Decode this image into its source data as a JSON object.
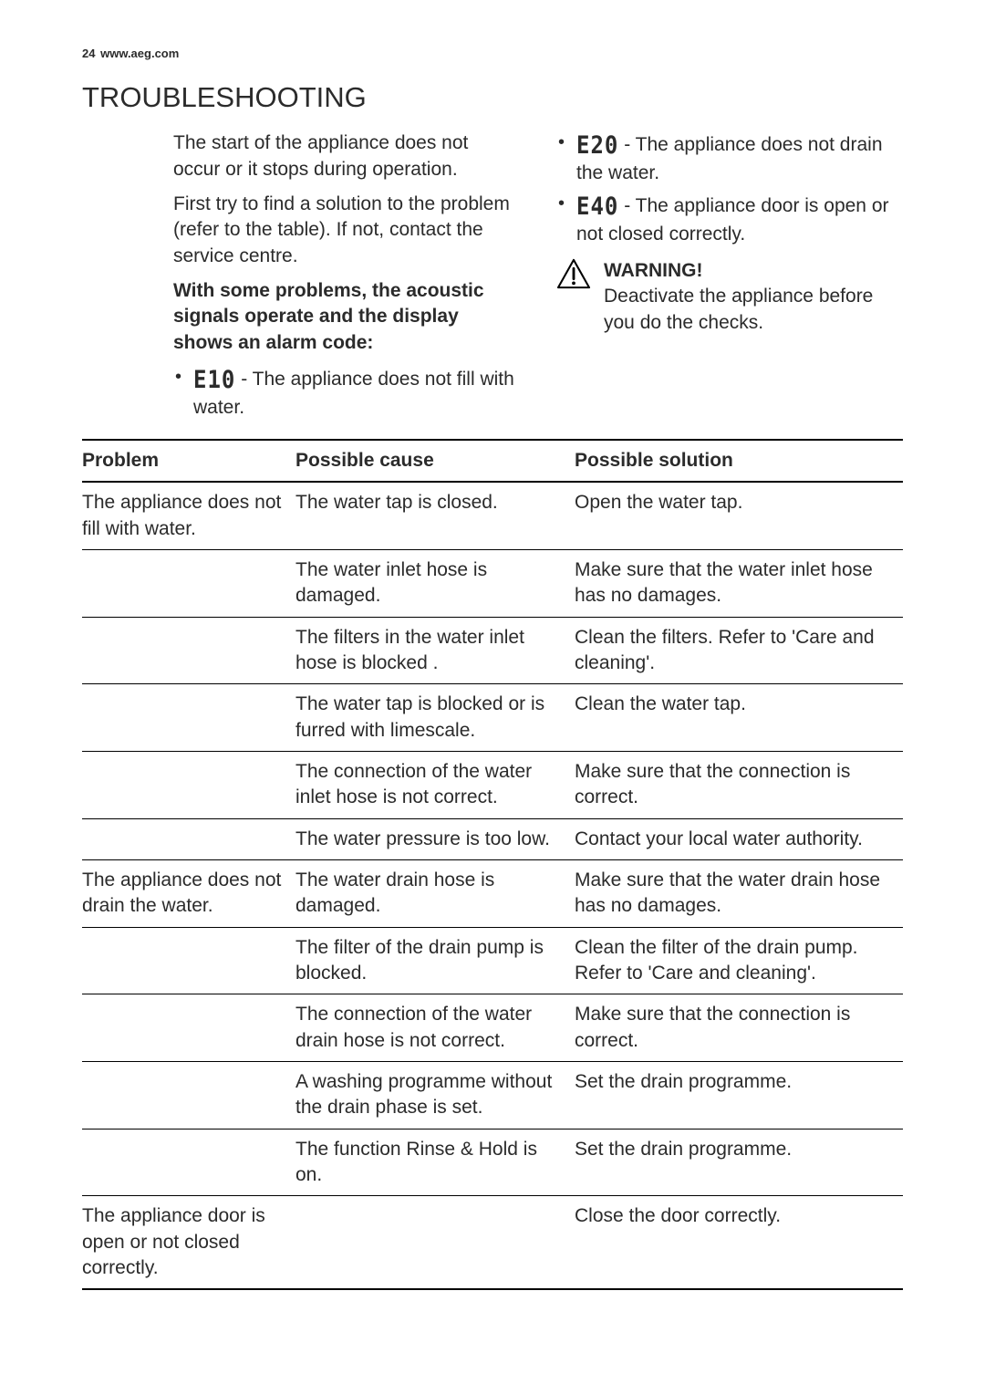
{
  "page": {
    "number": "24",
    "site": "www.aeg.com"
  },
  "title": "TROUBLESHOOTING",
  "left": {
    "para1": "The start of the appliance does not occur or it stops during operation.",
    "para2": "First try to find a solution to the problem (refer to the table). If not, contact the service centre.",
    "boldPara": "With some problems, the acoustic signals operate and the display shows an alarm code:",
    "codes": [
      {
        "code": "E10",
        "text": " - The appliance does not fill with water."
      }
    ]
  },
  "right": {
    "codes": [
      {
        "code": "E20",
        "text": " - The appliance does not drain the water."
      },
      {
        "code": "E40",
        "text": " - The appliance door is open or not closed correctly."
      }
    ],
    "warning": {
      "title": "WARNING!",
      "body": "Deactivate the appliance before you do the checks."
    }
  },
  "table": {
    "headers": {
      "c1": "Problem",
      "c2": "Possible cause",
      "c3": "Possible solution"
    },
    "rows": [
      {
        "problem": "The appliance does not fill with water.",
        "cause": "The water tap is closed.",
        "solution": "Open the water tap."
      },
      {
        "problem": " ",
        "cause": "The water inlet hose is damaged.",
        "solution": "Make sure that the water inlet hose has no damages."
      },
      {
        "problem": " ",
        "cause": "The filters in the water inlet hose is blocked .",
        "solution": "Clean the filters. Refer to 'Care and cleaning'."
      },
      {
        "problem": " ",
        "cause": "The water tap is blocked or is furred with limescale.",
        "solution": "Clean the water tap."
      },
      {
        "problem": " ",
        "cause": "The connection of the water inlet hose is not correct.",
        "solution": "Make sure that the connection is correct."
      },
      {
        "problem": " ",
        "cause": "The water pressure is too low.",
        "solution": "Contact your local water authority."
      },
      {
        "problem": "The appliance does not drain the water.",
        "cause": "The water drain hose is damaged.",
        "solution": "Make sure that the water drain hose has no damages."
      },
      {
        "problem": " ",
        "cause": "The filter of the drain pump is blocked.",
        "solution": "Clean the filter of the drain pump. Refer to 'Care and cleaning'."
      },
      {
        "problem": " ",
        "cause": "The connection of the water drain hose is not correct.",
        "solution": "Make sure that the connection is correct."
      },
      {
        "problem": " ",
        "cause": "A washing programme without the drain phase is set.",
        "solution": "Set the drain programme."
      },
      {
        "problem": " ",
        "cause": "The function Rinse & Hold is on.",
        "solution": "Set the drain programme."
      },
      {
        "problem": "The appliance door is open or not closed correctly.",
        "cause": " ",
        "solution": "Close the door correctly."
      }
    ]
  }
}
